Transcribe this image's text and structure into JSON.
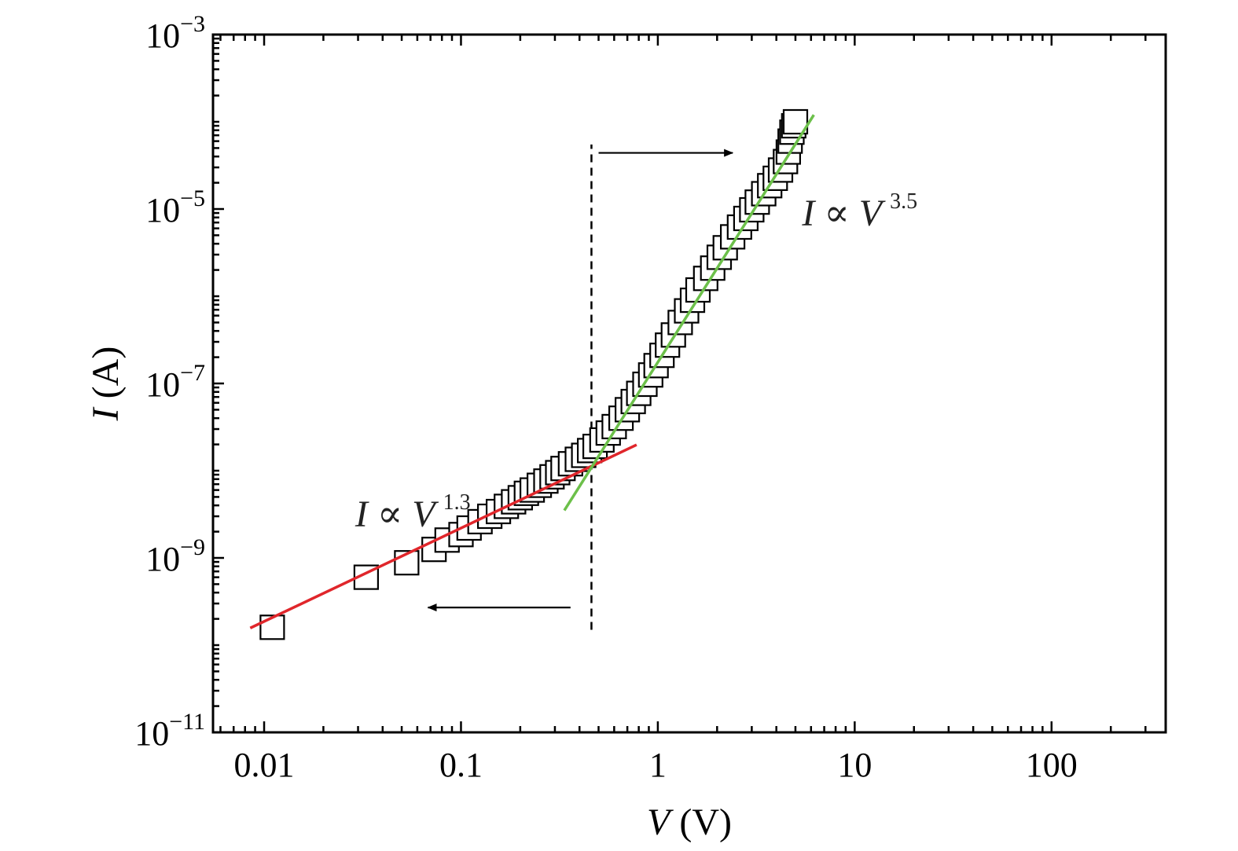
{
  "chart_data": {
    "type": "scatter",
    "title": "",
    "xlabel": {
      "var": "V",
      "unit": " (V)"
    },
    "ylabel": {
      "var": "I",
      "unit": " (A)"
    },
    "xscale": "log",
    "yscale": "log",
    "xlim": [
      0.0055,
      380
    ],
    "ylim": [
      1e-11,
      0.001
    ],
    "grid": false,
    "legend": "none",
    "x_ticks": [
      {
        "value": 0.01,
        "label": "0.01"
      },
      {
        "value": 0.1,
        "label": "0.1"
      },
      {
        "value": 1,
        "label": "1"
      },
      {
        "value": 10,
        "label": "10"
      },
      {
        "value": 100,
        "label": "100"
      }
    ],
    "y_ticks": [
      {
        "value": 1e-11,
        "base": "10",
        "exp": "−11"
      },
      {
        "value": 1e-09,
        "base": "10",
        "exp": "−9"
      },
      {
        "value": 1e-07,
        "base": "10",
        "exp": "−7"
      },
      {
        "value": 1e-05,
        "base": "10",
        "exp": "−5"
      },
      {
        "value": 0.001,
        "base": "10",
        "exp": "−3"
      }
    ],
    "series": [
      {
        "marker": "open-square",
        "color": "#000000",
        "x": [
          0.011,
          0.033,
          0.053,
          0.073,
          0.085,
          0.1,
          0.11,
          0.125,
          0.14,
          0.155,
          0.17,
          0.185,
          0.2,
          0.215,
          0.23,
          0.25,
          0.27,
          0.29,
          0.31,
          0.33,
          0.36,
          0.39,
          0.42,
          0.45,
          0.48,
          0.52,
          0.56,
          0.6,
          0.65,
          0.7,
          0.75,
          0.8,
          0.86,
          0.92,
          0.98,
          1.05,
          1.12,
          1.2,
          1.3,
          1.4,
          1.5,
          1.6,
          1.75,
          1.9,
          2.05,
          2.2,
          2.4,
          2.6,
          2.8,
          3.0,
          3.2,
          3.45,
          3.7,
          3.95,
          4.2,
          4.45,
          4.6,
          4.7,
          4.8,
          4.9,
          5.0
        ],
        "y": [
          1.6e-10,
          6e-10,
          8.8e-10,
          1.25e-09,
          1.6e-09,
          1.85e-09,
          2.2e-09,
          2.6e-09,
          3e-09,
          3.4e-09,
          3.9e-09,
          4.4e-09,
          4.9e-09,
          5.5e-09,
          6e-09,
          6.8e-09,
          7.6e-09,
          8.5e-09,
          9.5e-09,
          1.06e-08,
          1.2e-08,
          1.35e-08,
          1.5e-08,
          1.7e-08,
          1.9e-08,
          2.25e-08,
          2.7e-08,
          3.2e-08,
          4e-08,
          5e-08,
          6.2e-08,
          7.7e-08,
          9.8e-08,
          1.25e-07,
          1.6e-07,
          2.1e-07,
          2.75e-07,
          3.6e-07,
          5e-07,
          6.8e-07,
          9e-07,
          1.18e-06,
          1.6e-06,
          2.1e-06,
          2.8e-06,
          3.6e-06,
          4.8e-06,
          6.2e-06,
          7.8e-06,
          9.8e-06,
          1.2e-05,
          1.5e-05,
          1.85e-05,
          2.25e-05,
          2.8e-05,
          3.5e-05,
          4.5e-05,
          6e-05,
          7.6e-05,
          9e-05,
          0.0001
        ]
      }
    ],
    "fits": [
      {
        "name": "red-fit",
        "color": "#e0262b",
        "x": [
          0.0085,
          0.78
        ],
        "y": [
          1.57e-10,
          1.98e-08
        ]
      },
      {
        "name": "green-fit",
        "color": "#6cc04a",
        "x": [
          0.335,
          6.2
        ],
        "y": [
          3.5e-09,
          0.00012
        ]
      }
    ],
    "vline": {
      "x": 0.46,
      "y": [
        1.5e-10,
        5.5e-05
      ],
      "style": "dashed"
    },
    "arrows": [
      {
        "name": "right-arrow",
        "x": [
          0.5,
          2.4
        ],
        "y": 4.4e-05
      },
      {
        "name": "left-arrow",
        "x": [
          0.36,
          0.068
        ],
        "y": 2.7e-10
      }
    ],
    "annotations": [
      {
        "name": "annotation-low",
        "lhs": "I",
        "op": " ∝ ",
        "var": "V",
        "exp": "1.3",
        "x": 0.029,
        "y": 2.3e-09
      },
      {
        "name": "annotation-high",
        "lhs": "I",
        "op": " ∝ ",
        "var": "V",
        "exp": "3.5",
        "x": 5.4,
        "y": 6.5e-06
      }
    ]
  }
}
